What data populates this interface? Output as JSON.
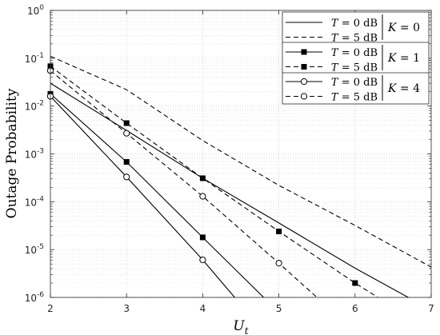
{
  "chart_data": {
    "type": "line",
    "y_scale": "log",
    "xlim": [
      2,
      7
    ],
    "ylim": [
      1e-06,
      1
    ],
    "x_ticks": [
      2,
      3,
      4,
      5,
      6,
      7
    ],
    "y_ticks": [
      {
        "value": 1,
        "base": "10",
        "exp": "0"
      },
      {
        "value": 0.1,
        "base": "10",
        "exp": "-1"
      },
      {
        "value": 0.01,
        "base": "10",
        "exp": "-2"
      },
      {
        "value": 0.001,
        "base": "10",
        "exp": "-3"
      },
      {
        "value": 0.0001,
        "base": "10",
        "exp": "-4"
      },
      {
        "value": 1e-05,
        "base": "10",
        "exp": "-5"
      },
      {
        "value": 1e-06,
        "base": "10",
        "exp": "-6"
      }
    ],
    "xlabel": {
      "main": "U",
      "sub": "t"
    },
    "ylabel": "Outage Probability",
    "grid": true,
    "legend_position": "top-right",
    "series": [
      {
        "legend_var": "T",
        "legend_value": "= 0 dB",
        "group": "K0",
        "dash": "solid",
        "marker": "none",
        "points": [
          [
            2,
            0.03
          ],
          [
            3,
            0.0031
          ],
          [
            4,
            0.00031
          ],
          [
            5,
            3.6e-05
          ],
          [
            6,
            4.1e-06
          ],
          [
            6.7,
            1e-06
          ]
        ]
      },
      {
        "legend_var": "T",
        "legend_value": "= 5 dB",
        "group": "K0",
        "dash": "dashed",
        "marker": "none",
        "points": [
          [
            2,
            0.11
          ],
          [
            3,
            0.022
          ],
          [
            4,
            0.0019
          ],
          [
            5,
            0.00022
          ],
          [
            6,
            3.2e-05
          ],
          [
            7,
            4.3e-06
          ]
        ]
      },
      {
        "legend_var": "T",
        "legend_value": "= 0 dB",
        "group": "K1",
        "dash": "solid",
        "marker": "square",
        "points": [
          [
            2,
            0.018
          ],
          [
            3,
            0.00068
          ],
          [
            4,
            1.8e-05
          ],
          [
            4.8,
            1e-06
          ]
        ]
      },
      {
        "legend_var": "T",
        "legend_value": "= 5 dB",
        "group": "K1",
        "dash": "dashed",
        "marker": "square",
        "points": [
          [
            2,
            0.068
          ],
          [
            3,
            0.0044
          ],
          [
            4,
            0.00031
          ],
          [
            5,
            2.4e-05
          ],
          [
            6,
            2e-06
          ],
          [
            6.3,
            1e-06
          ]
        ]
      },
      {
        "legend_var": "T",
        "legend_value": "= 0 dB",
        "group": "K4",
        "dash": "solid",
        "marker": "circle",
        "points": [
          [
            2,
            0.016
          ],
          [
            3,
            0.00033
          ],
          [
            4,
            6.1e-06
          ],
          [
            4.42,
            1e-06
          ]
        ]
      },
      {
        "legend_var": "T",
        "legend_value": "= 5 dB",
        "group": "K4",
        "dash": "dashed",
        "marker": "circle",
        "points": [
          [
            2,
            0.055
          ],
          [
            3,
            0.0027
          ],
          [
            4,
            0.00013
          ],
          [
            5,
            5.2e-06
          ],
          [
            5.5,
            1e-06
          ]
        ]
      }
    ],
    "groups": [
      {
        "id": "K0",
        "var": "K",
        "value": "= 0"
      },
      {
        "id": "K1",
        "var": "K",
        "value": "= 1"
      },
      {
        "id": "K4",
        "var": "K",
        "value": "= 4"
      }
    ]
  }
}
